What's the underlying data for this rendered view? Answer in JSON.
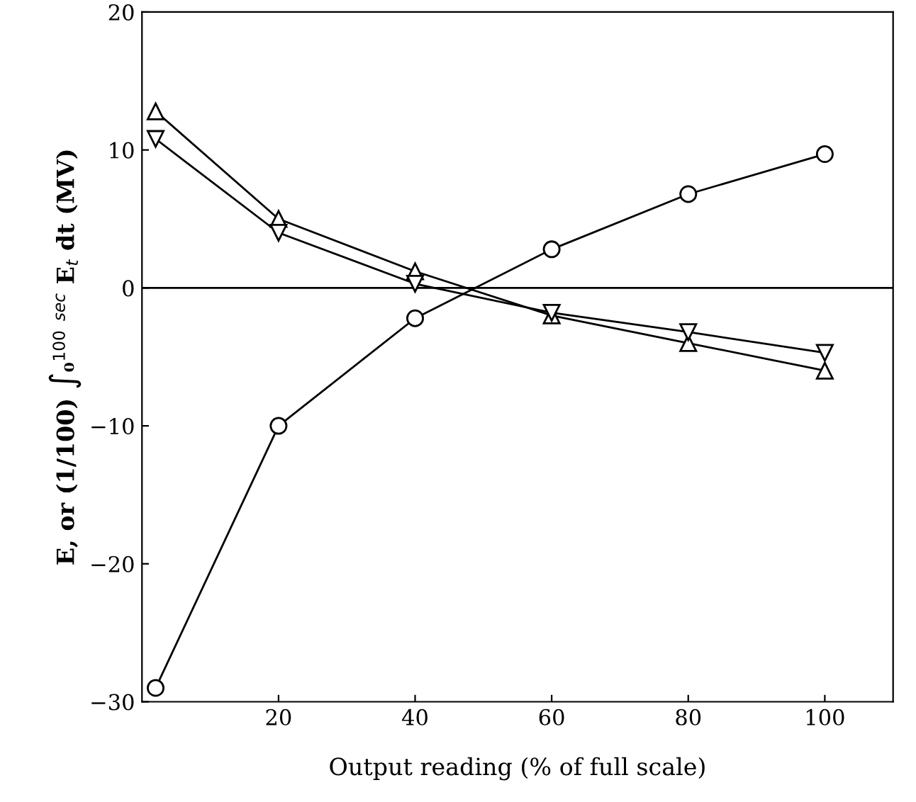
{
  "chart_data": {
    "type": "line",
    "xlabel": "Output reading (% of full scale)",
    "ylabel": "E, or (1/100) ∫₀$^{100}$ $^{sec}$ E$_{t}$ dt (MV)",
    "x": [
      2,
      20,
      40,
      60,
      80,
      100
    ],
    "series": [
      {
        "color": "#000000",
        "marker": "circle",
        "values": [
          -29,
          -10,
          -2.2,
          2.8,
          6.8,
          9.7
        ]
      },
      {
        "color": "#000000",
        "marker": "triangle",
        "values": [
          12.8,
          5,
          1.2,
          -2,
          -4,
          -6
        ]
      },
      {
        "color": "#000000",
        "marker": "triangle_down",
        "values": [
          10.8,
          4,
          0.3,
          -1.8,
          -3.2,
          -4.7
        ]
      }
    ],
    "xlim": [
      0,
      110
    ],
    "xticks": [
      20,
      40,
      60,
      80,
      100
    ],
    "ylim": [
      -30,
      20
    ],
    "yticks": [
      -30,
      -20,
      -10,
      0,
      10,
      20
    ],
    "ref_lines": [
      {
        "axis": "y",
        "value": 0,
        "color": "#000000"
      }
    ],
    "grid": false,
    "legend": false,
    "line_style": "solid"
  }
}
